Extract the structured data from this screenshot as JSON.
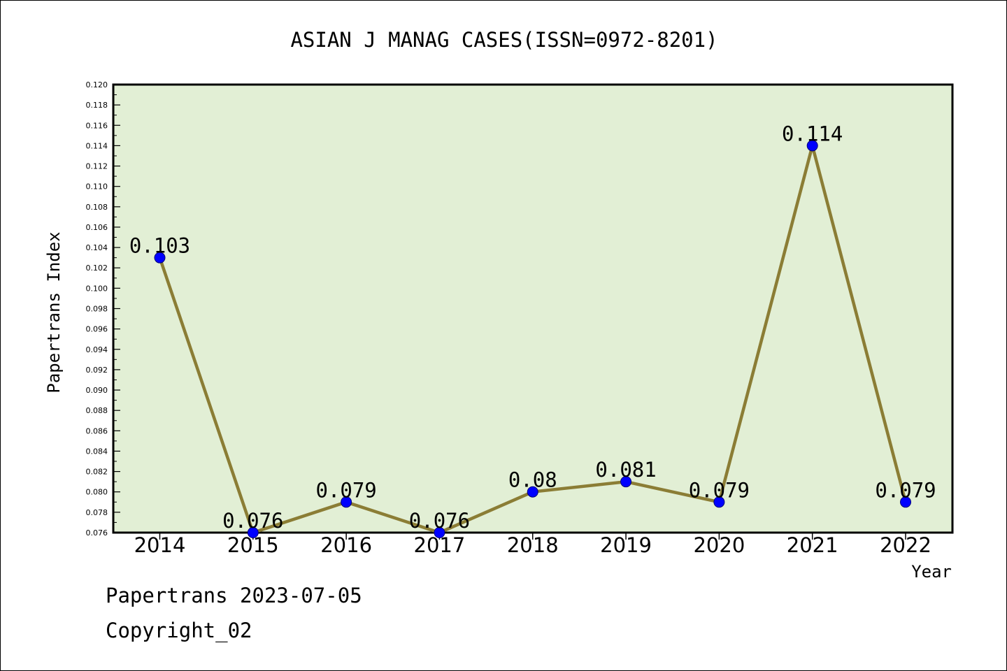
{
  "chart_data": {
    "type": "line",
    "title": "ASIAN J MANAG CASES(ISSN=0972-8201)",
    "xlabel": "Year",
    "ylabel": "Papertrans Index",
    "categories": [
      "2014",
      "2015",
      "2016",
      "2017",
      "2018",
      "2019",
      "2020",
      "2021",
      "2022"
    ],
    "series": [
      {
        "values": [
          0.103,
          0.076,
          0.079,
          0.076,
          0.08,
          0.081,
          0.079,
          0.114,
          0.079
        ],
        "labels": [
          "0.103",
          "0.076",
          "0.079",
          "0.076",
          "0.08",
          "0.081",
          "0.079",
          "0.114",
          "0.079"
        ]
      }
    ],
    "ylim": [
      0.076,
      0.12
    ],
    "ytick_step": 0.002,
    "ytick_labels": [
      "0.076",
      "0.078",
      "0.080",
      "0.082",
      "0.084",
      "0.086",
      "0.088",
      "0.090",
      "0.092",
      "0.094",
      "0.096",
      "0.098",
      "0.100",
      "0.102",
      "0.104",
      "0.106",
      "0.108",
      "0.110",
      "0.112",
      "0.114",
      "0.116",
      "0.118",
      "0.120"
    ],
    "grid": false,
    "colors": {
      "plot_background": "#e2efd5",
      "line": "#8b7d35",
      "marker": "#0000ff"
    }
  },
  "footer": {
    "credit": "Papertrans 2023-07-05",
    "copyright": "Copyright_02"
  }
}
